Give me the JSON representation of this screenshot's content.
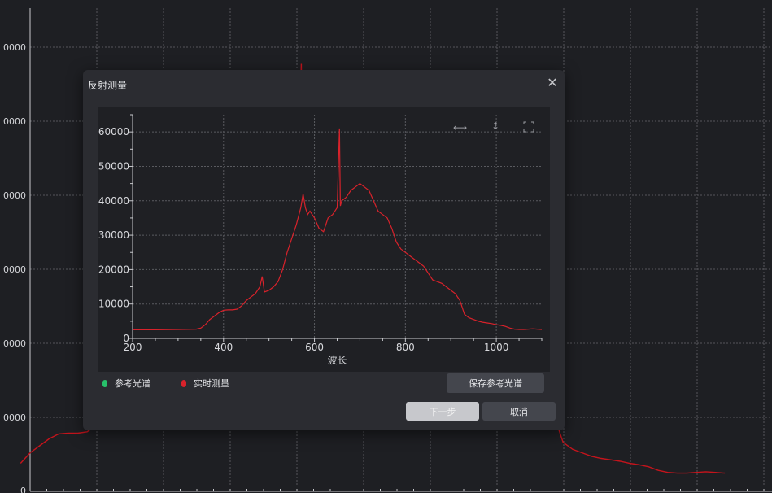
{
  "background_plot": {
    "y_tick_labels": [
      "0000",
      "0000",
      "0000",
      "0000",
      "0000",
      "0000",
      "0"
    ],
    "line_color": "#c4141c"
  },
  "dialog": {
    "title": "反射测量",
    "close_icon": "close-icon",
    "toolbar_icons": [
      "fit-horizontal-icon",
      "fit-vertical-icon",
      "fullscreen-icon"
    ],
    "legend": [
      {
        "label": "参考光谱",
        "color": "#27c06a"
      },
      {
        "label": "实时测量",
        "color": "#d8222b"
      }
    ],
    "buttons": {
      "save_reference": "保存参考光谱",
      "next": "下一步",
      "cancel": "取消"
    }
  },
  "chart_data": {
    "type": "line",
    "xlabel": "波长",
    "ylabel": "",
    "xlim": [
      200,
      1100
    ],
    "ylim": [
      0,
      65000
    ],
    "x_ticks": [
      200,
      400,
      600,
      800,
      1000
    ],
    "y_ticks": [
      0,
      10000,
      20000,
      30000,
      40000,
      50000,
      60000
    ],
    "grid": true,
    "series": [
      {
        "color": "#d8222b",
        "x": [
          200,
          250,
          300,
          340,
          350,
          360,
          370,
          380,
          390,
          400,
          410,
          420,
          430,
          440,
          450,
          460,
          470,
          480,
          485,
          490,
          500,
          510,
          520,
          530,
          540,
          550,
          560,
          570,
          575,
          580,
          585,
          590,
          600,
          610,
          620,
          630,
          640,
          650,
          655,
          657,
          660,
          670,
          680,
          690,
          700,
          710,
          720,
          730,
          740,
          750,
          760,
          770,
          780,
          790,
          800,
          810,
          820,
          830,
          840,
          850,
          860,
          870,
          880,
          890,
          900,
          910,
          920,
          930,
          940,
          950,
          960,
          970,
          980,
          990,
          1000,
          1010,
          1020,
          1030,
          1040,
          1050,
          1060,
          1070,
          1080,
          1090,
          1100
        ],
        "y": [
          2500,
          2500,
          2600,
          2700,
          3000,
          4000,
          5500,
          6500,
          7500,
          8200,
          8300,
          8300,
          8500,
          9500,
          11000,
          12000,
          13000,
          15000,
          18000,
          13500,
          14000,
          15000,
          16500,
          20000,
          25000,
          29000,
          33000,
          38000,
          42000,
          38000,
          36000,
          37000,
          35000,
          32000,
          31000,
          35000,
          36000,
          38000,
          61000,
          38500,
          40000,
          41000,
          43000,
          44000,
          45000,
          44000,
          43000,
          40000,
          37000,
          36000,
          35000,
          32000,
          28000,
          26000,
          25000,
          24000,
          23000,
          22000,
          21000,
          19000,
          17000,
          16500,
          16000,
          15000,
          14000,
          13000,
          11000,
          7000,
          6000,
          5500,
          5000,
          4700,
          4500,
          4300,
          4000,
          3800,
          3500,
          3000,
          2700,
          2600,
          2600,
          2700,
          2800,
          2700,
          2600
        ]
      }
    ]
  }
}
